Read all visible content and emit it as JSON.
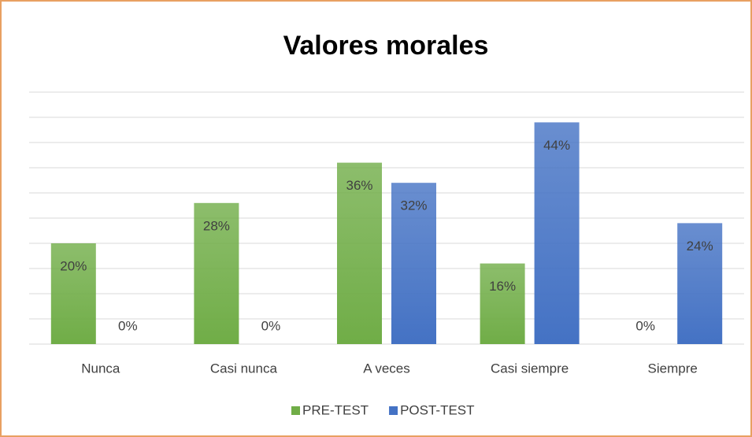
{
  "chart_data": {
    "type": "bar",
    "title": "Valores morales",
    "categories": [
      "Nunca",
      "Casi nunca",
      "A veces",
      "Casi siempre",
      "Siempre"
    ],
    "series": [
      {
        "name": "PRE-TEST",
        "color": "#70ad47",
        "values": [
          20,
          28,
          36,
          16,
          0
        ],
        "value_labels": [
          "20%",
          "28%",
          "36%",
          "16%",
          "0%"
        ]
      },
      {
        "name": "POST-TEST",
        "color": "#4472c4",
        "values": [
          0,
          0,
          32,
          44,
          24
        ],
        "value_labels": [
          "0%",
          "0%",
          "32%",
          "44%",
          "24%"
        ]
      }
    ],
    "ylim": [
      0,
      50
    ],
    "yticks": [
      0,
      5,
      10,
      15,
      20,
      25,
      30,
      35,
      40,
      45,
      50
    ],
    "grid": true,
    "legend": "bottom"
  }
}
